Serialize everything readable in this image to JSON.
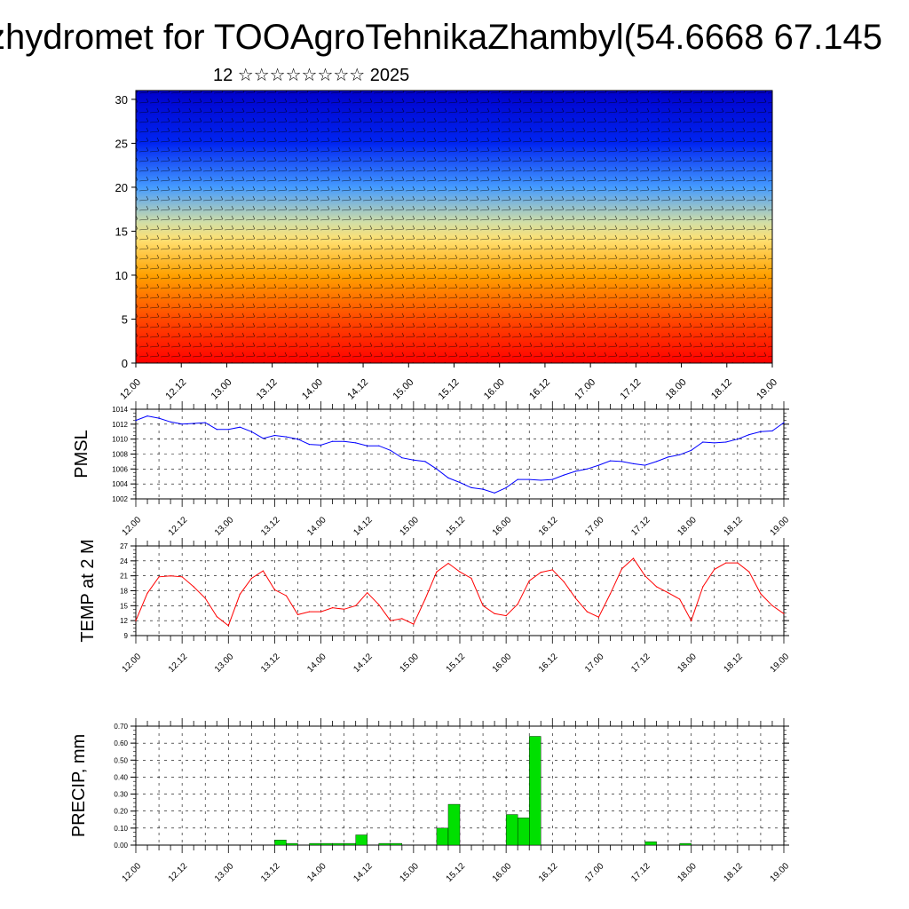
{
  "title": "zhydromet for TOOAgroTehnikaZhambyl(54.6668 67.145",
  "subtitle": "12 ☆☆☆☆☆☆☆☆ 2025",
  "time_labels": [
    "12.00",
    "12.12",
    "13.00",
    "13.12",
    "14.00",
    "14.12",
    "15.00",
    "15.12",
    "16.00",
    "16.12",
    "17.00",
    "17.12",
    "18.00",
    "18.12",
    "19.00"
  ],
  "chart_data": [
    {
      "type": "heatmap",
      "name_hint": "cross-section",
      "x_ticks": [
        "12.00",
        "12.12",
        "13.00",
        "13.12",
        "14.00",
        "14.12",
        "15.00",
        "15.12",
        "16.00",
        "16.12",
        "17.00",
        "17.12",
        "18.00",
        "18.12",
        "19.00"
      ],
      "y_ticks": [
        0,
        5,
        10,
        15,
        20,
        25,
        30
      ],
      "ylim": [
        0,
        31
      ],
      "colormap": [
        "#ff0000",
        "#ff6600",
        "#ffb000",
        "#ffe680",
        "#66ccff",
        "#0033ff",
        "#0000cc"
      ],
      "color_level_by_height": [
        [
          0,
          0.0
        ],
        [
          5,
          0.12
        ],
        [
          10,
          0.3
        ],
        [
          14,
          0.48
        ],
        [
          16,
          0.55
        ],
        [
          20,
          0.72
        ],
        [
          25,
          0.88
        ],
        [
          31,
          1.0
        ]
      ]
    },
    {
      "type": "line",
      "ylabel": "PMSL",
      "ylim": [
        1002,
        1014
      ],
      "y_ticks": [
        1002,
        1004,
        1006,
        1008,
        1010,
        1012,
        1014
      ],
      "x_ticks": [
        "12.00",
        "12.12",
        "13.00",
        "13.12",
        "14.00",
        "14.12",
        "15.00",
        "15.12",
        "16.00",
        "16.12",
        "17.00",
        "17.12",
        "18.00",
        "18.12",
        "19.00"
      ],
      "color": "#0000ff",
      "x": [
        0,
        3,
        6,
        9,
        12,
        15,
        18,
        21,
        24,
        27,
        30,
        33,
        36,
        39,
        42,
        45,
        48,
        51,
        54,
        57,
        60,
        63,
        66,
        69,
        72,
        75,
        78,
        81,
        84,
        87,
        90,
        93,
        96,
        99,
        102,
        105,
        108,
        111,
        114,
        117,
        120,
        123,
        126,
        129,
        132,
        135,
        138,
        141,
        144,
        147,
        150,
        153,
        156,
        159,
        162,
        165,
        168
      ],
      "y": [
        1012.5,
        1013.1,
        1012.8,
        1012.3,
        1012.0,
        1012.1,
        1012.2,
        1011.3,
        1011.3,
        1011.6,
        1011.0,
        1010.1,
        1010.5,
        1010.3,
        1010.0,
        1009.3,
        1009.2,
        1009.7,
        1009.7,
        1009.5,
        1009.1,
        1009.1,
        1008.5,
        1007.5,
        1007.2,
        1007.0,
        1006.0,
        1004.8,
        1004.2,
        1003.5,
        1003.3,
        1002.8,
        1003.5,
        1004.6,
        1004.6,
        1004.5,
        1004.6,
        1005.2,
        1005.7,
        1006.0,
        1006.5,
        1007.1,
        1007.0,
        1006.7,
        1006.5,
        1007.0,
        1007.6,
        1007.9,
        1008.5,
        1009.6,
        1009.5,
        1009.6,
        1010.0,
        1010.6,
        1011.0,
        1011.1,
        1012.2
      ]
    },
    {
      "type": "line",
      "ylabel": "TEMP at 2 M",
      "ylim": [
        9,
        27
      ],
      "y_ticks": [
        9,
        12,
        15,
        18,
        21,
        24,
        27
      ],
      "x_ticks": [
        "12.00",
        "12.12",
        "13.00",
        "13.12",
        "14.00",
        "14.12",
        "15.00",
        "15.12",
        "16.00",
        "16.12",
        "17.00",
        "17.12",
        "18.00",
        "18.12",
        "19.00"
      ],
      "color": "#ff0000",
      "x": [
        0,
        3,
        6,
        9,
        12,
        15,
        18,
        21,
        24,
        27,
        30,
        33,
        36,
        39,
        42,
        45,
        48,
        51,
        54,
        57,
        60,
        63,
        66,
        69,
        72,
        75,
        78,
        81,
        84,
        87,
        90,
        93,
        96,
        99,
        102,
        105,
        108,
        111,
        114,
        117,
        120,
        123,
        126,
        129,
        132,
        135,
        138,
        141,
        144,
        147,
        150,
        153,
        156,
        159,
        162,
        165,
        168
      ],
      "y": [
        12.0,
        17.5,
        20.8,
        21.0,
        20.8,
        18.8,
        16.5,
        12.8,
        11.0,
        17.3,
        20.5,
        22.0,
        18.2,
        17.0,
        13.2,
        13.8,
        13.8,
        14.6,
        14.3,
        15.0,
        17.6,
        15.2,
        12.0,
        12.4,
        11.3,
        16.3,
        21.8,
        23.5,
        21.8,
        20.5,
        15.0,
        13.4,
        13.0,
        15.3,
        20.0,
        21.7,
        22.2,
        19.8,
        16.5,
        13.8,
        12.7,
        17.4,
        22.4,
        24.5,
        21.0,
        18.8,
        17.6,
        16.3,
        12.0,
        18.8,
        22.3,
        23.6,
        23.6,
        21.8,
        17.4,
        15.0,
        13.4
      ]
    },
    {
      "type": "bar",
      "ylabel": "PRECIP, mm",
      "ylim": [
        0,
        0.7
      ],
      "y_ticks": [
        "0.00",
        "0.10",
        "0.20",
        "0.30",
        "0.40",
        "0.50",
        "0.60",
        "0.70"
      ],
      "x_ticks": [
        "12.00",
        "12.12",
        "13.00",
        "13.12",
        "14.00",
        "14.12",
        "15.00",
        "15.12",
        "16.00",
        "16.12",
        "17.00",
        "17.12",
        "18.00",
        "18.12",
        "19.00"
      ],
      "color": "#00e000",
      "bar_width_hours": 3,
      "x": [
        36,
        39,
        45,
        48,
        51,
        54,
        57,
        63,
        66,
        78,
        81,
        96,
        99,
        102,
        132,
        141
      ],
      "values": [
        0.03,
        0.01,
        0.01,
        0.01,
        0.01,
        0.01,
        0.06,
        0.01,
        0.01,
        0.1,
        0.24,
        0.18,
        0.16,
        0.64,
        0.02,
        0.01
      ]
    }
  ]
}
